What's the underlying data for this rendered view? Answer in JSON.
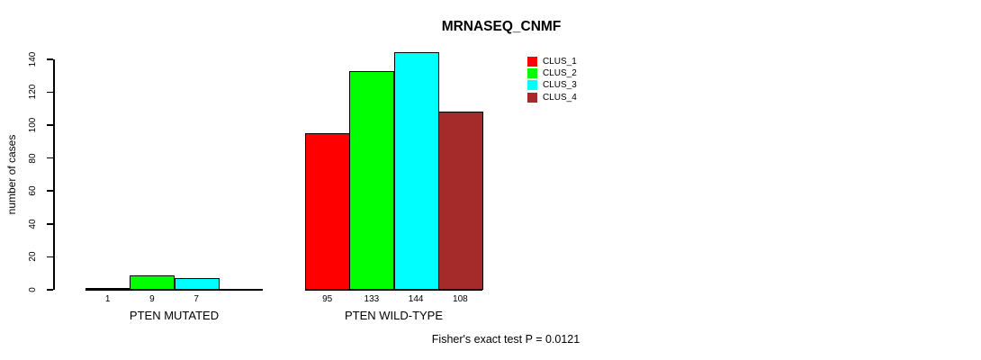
{
  "chart_data": {
    "type": "bar",
    "title": "MRNASEQ_CNMF",
    "ylabel": "number of cases",
    "xlabel": "",
    "ylim": [
      0,
      140
    ],
    "yticks": [
      0,
      20,
      40,
      60,
      80,
      100,
      120,
      140
    ],
    "grid": false,
    "legend_position": "top-right",
    "categories": [
      "PTEN MUTATED",
      "PTEN WILD-TYPE"
    ],
    "series": [
      {
        "name": "CLUS_1",
        "color": "#FF0000",
        "values": [
          1,
          95
        ]
      },
      {
        "name": "CLUS_2",
        "color": "#00FF00",
        "values": [
          9,
          133
        ]
      },
      {
        "name": "CLUS_3",
        "color": "#00FFFF",
        "values": [
          7,
          144
        ]
      },
      {
        "name": "CLUS_4",
        "color": "#A52A2A",
        "values": [
          0,
          108
        ]
      }
    ],
    "bar_value_labels": [
      [
        "1",
        "9",
        "7",
        ""
      ],
      [
        "95",
        "133",
        "144",
        "108"
      ]
    ],
    "annotation": "Fisher's exact test P = 0.0121",
    "axis_color": "#000000",
    "background_color": "#FFFFFF"
  }
}
